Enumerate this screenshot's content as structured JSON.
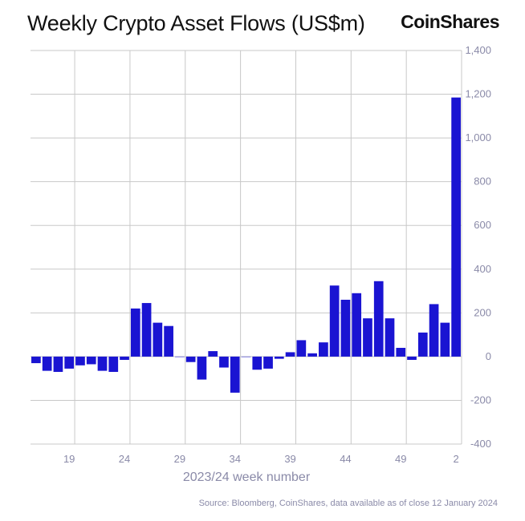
{
  "header": {
    "title": "Weekly Crypto Asset Flows (US$m)",
    "brand": "CoinShares"
  },
  "footer": {
    "source": "Source: Bloomberg, CoinShares, data available as of close 12 January 2024"
  },
  "colors": {
    "bar": "#1a14d2",
    "grid": "#c8c8c8",
    "axis_text": "#8a8aa8"
  },
  "chart_data": {
    "type": "bar",
    "title": "Weekly Crypto Asset Flows (US$m)",
    "xlabel": "2023/24 week number",
    "ylabel": "",
    "y_axis_position": "right",
    "ylim": [
      -400,
      1400
    ],
    "yticks": [
      "1,400",
      "1,200",
      "1,000",
      "800",
      "600",
      "400",
      "200",
      "0",
      "-200",
      "-400"
    ],
    "xticks": [
      "19",
      "24",
      "29",
      "34",
      "39",
      "44",
      "49",
      "2"
    ],
    "grid": true,
    "categories": [
      "16",
      "17",
      "18",
      "19",
      "20",
      "21",
      "22",
      "23",
      "24",
      "25",
      "26",
      "27",
      "28",
      "29",
      "30",
      "31",
      "32",
      "33",
      "34",
      "35",
      "36",
      "37",
      "38",
      "39",
      "40",
      "41",
      "42",
      "43",
      "44",
      "45",
      "46",
      "47",
      "48",
      "49",
      "50",
      "51",
      "52",
      "1",
      "2"
    ],
    "values": [
      -30,
      -65,
      -70,
      -55,
      -40,
      -35,
      -65,
      -70,
      -15,
      220,
      245,
      155,
      140,
      0,
      -25,
      -105,
      25,
      -50,
      -165,
      0,
      -60,
      -55,
      -10,
      20,
      75,
      15,
      65,
      325,
      260,
      290,
      175,
      345,
      175,
      40,
      -15,
      110,
      240,
      155,
      1185
    ]
  }
}
